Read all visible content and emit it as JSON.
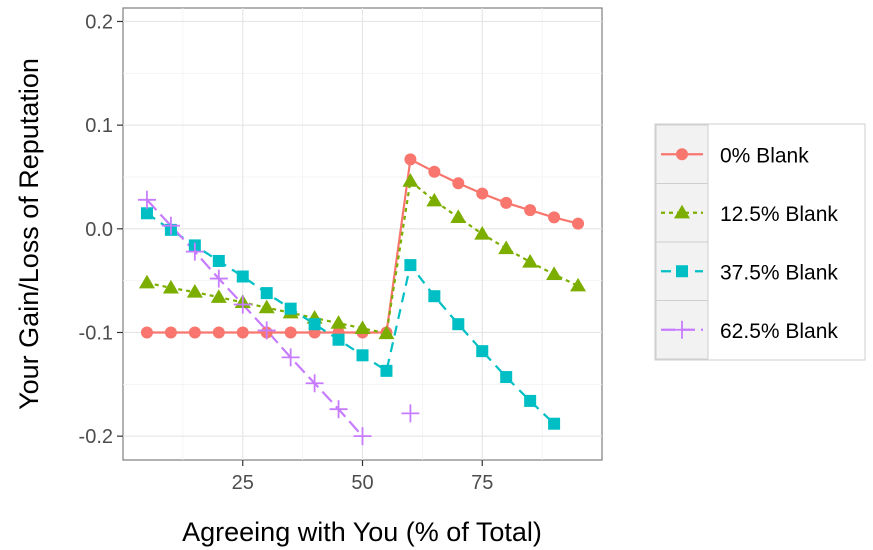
{
  "chart_data": {
    "type": "line",
    "xlabel": "Agreeing with You (% of Total)",
    "ylabel": "Your Gain/Loss of Reputation",
    "xlim": [
      0,
      100
    ],
    "ylim": [
      -0.223,
      0.213
    ],
    "x_ticks": [
      25,
      50,
      75
    ],
    "x_tick_labels": [
      "25",
      "50",
      "75"
    ],
    "y_ticks": [
      -0.2,
      -0.1,
      0.0,
      0.1,
      0.2
    ],
    "y_tick_labels": [
      "-0.2",
      "-0.1",
      "0.0",
      "0.1",
      "0.2"
    ],
    "grid": true,
    "legend_position": "right",
    "series": [
      {
        "name": "0% Blank",
        "color": "#F8766D",
        "marker": "circle",
        "line_style": "solid",
        "segments": [
          [
            [
              5,
              -0.1
            ],
            [
              10,
              -0.1
            ],
            [
              15,
              -0.1
            ],
            [
              20,
              -0.1
            ],
            [
              25,
              -0.1
            ],
            [
              30,
              -0.1
            ],
            [
              35,
              -0.1
            ],
            [
              40,
              -0.1
            ],
            [
              45,
              -0.1
            ],
            [
              50,
              -0.1
            ],
            [
              55,
              -0.1
            ],
            [
              60,
              0.067
            ],
            [
              65,
              0.055
            ],
            [
              70,
              0.044
            ],
            [
              75,
              0.034
            ],
            [
              80,
              0.025
            ],
            [
              85,
              0.018
            ],
            [
              90,
              0.011
            ],
            [
              95,
              0.005
            ]
          ]
        ]
      },
      {
        "name": "12.5% Blank",
        "color": "#7CAE00",
        "marker": "triangle",
        "line_style": "dotted",
        "segments": [
          [
            [
              5,
              -0.052
            ],
            [
              10,
              -0.057
            ],
            [
              15,
              -0.061
            ],
            [
              20,
              -0.066
            ],
            [
              25,
              -0.071
            ],
            [
              30,
              -0.076
            ],
            [
              35,
              -0.081
            ],
            [
              40,
              -0.086
            ],
            [
              45,
              -0.091
            ],
            [
              50,
              -0.096
            ],
            [
              55,
              -0.101
            ],
            [
              60,
              0.046
            ],
            [
              65,
              0.027
            ],
            [
              70,
              0.011
            ],
            [
              75,
              -0.005
            ],
            [
              80,
              -0.019
            ],
            [
              85,
              -0.032
            ],
            [
              90,
              -0.044
            ],
            [
              95,
              -0.055
            ]
          ]
        ]
      },
      {
        "name": "37.5% Blank",
        "color": "#00BFC4",
        "marker": "square",
        "line_style": "dashed",
        "segments": [
          [
            [
              5,
              0.015
            ],
            [
              10,
              -0.001
            ],
            [
              15,
              -0.016
            ],
            [
              20,
              -0.031
            ],
            [
              25,
              -0.046
            ],
            [
              30,
              -0.062
            ],
            [
              35,
              -0.077
            ],
            [
              40,
              -0.092
            ],
            [
              45,
              -0.107
            ],
            [
              50,
              -0.122
            ],
            [
              55,
              -0.137
            ],
            [
              60,
              -0.035
            ],
            [
              65,
              -0.065
            ],
            [
              70,
              -0.092
            ],
            [
              75,
              -0.118
            ],
            [
              80,
              -0.143
            ],
            [
              85,
              -0.166
            ],
            [
              90,
              -0.188
            ]
          ]
        ]
      },
      {
        "name": "62.5% Blank",
        "color": "#C77CFF",
        "marker": "plus",
        "line_style": "longdash",
        "segments": [
          [
            [
              5,
              0.028
            ],
            [
              10,
              0.003
            ],
            [
              15,
              -0.022
            ],
            [
              20,
              -0.048
            ],
            [
              25,
              -0.073
            ],
            [
              30,
              -0.098
            ],
            [
              35,
              -0.124
            ],
            [
              40,
              -0.149
            ],
            [
              45,
              -0.174
            ],
            [
              50,
              -0.2
            ]
          ],
          [
            [
              60,
              -0.178
            ]
          ]
        ]
      }
    ]
  }
}
